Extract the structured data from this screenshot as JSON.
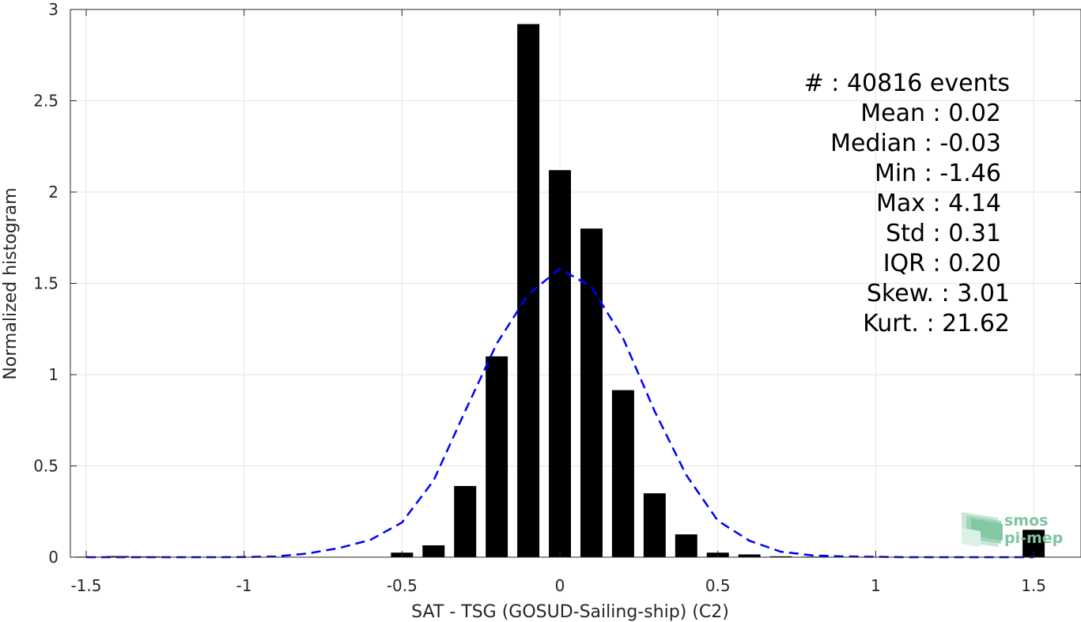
{
  "chart_data": {
    "type": "bar",
    "xlabel": "SAT - TSG (GOSUD-Sailing-ship) (C2)",
    "ylabel": "Normalized histogram",
    "xlim": [
      -1.55,
      1.65
    ],
    "ylim": [
      0,
      3
    ],
    "xticks": [
      -1.5,
      -1,
      -0.5,
      0,
      0.5,
      1,
      1.5
    ],
    "xtick_labels": [
      "-1.5",
      "-1",
      "-0.5",
      "0",
      "0.5",
      "1",
      "1.5"
    ],
    "yticks": [
      0,
      0.5,
      1,
      1.5,
      2,
      2.5,
      3
    ],
    "ytick_labels": [
      "0",
      "0.5",
      "1",
      "1.5",
      "2",
      "2.5",
      "3"
    ],
    "grid": true,
    "bar_width": 0.07,
    "bars": [
      {
        "x": -1.5,
        "y": 0.003
      },
      {
        "x": -1.4,
        "y": 0.006
      },
      {
        "x": -1.3,
        "y": 0.004
      },
      {
        "x": -0.5,
        "y": 0.025
      },
      {
        "x": -0.4,
        "y": 0.065
      },
      {
        "x": -0.3,
        "y": 0.39
      },
      {
        "x": -0.2,
        "y": 1.1
      },
      {
        "x": -0.1,
        "y": 2.92
      },
      {
        "x": 0.0,
        "y": 2.12
      },
      {
        "x": 0.1,
        "y": 1.8
      },
      {
        "x": 0.2,
        "y": 0.915
      },
      {
        "x": 0.3,
        "y": 0.35
      },
      {
        "x": 0.4,
        "y": 0.125
      },
      {
        "x": 0.5,
        "y": 0.025
      },
      {
        "x": 0.6,
        "y": 0.015
      },
      {
        "x": 0.7,
        "y": 0.005
      },
      {
        "x": 0.8,
        "y": 0.003
      },
      {
        "x": 1.5,
        "y": 0.15
      }
    ],
    "series": [
      {
        "type": "line",
        "style": "dashed",
        "color": "#0000ff",
        "x": [
          -1.5,
          -1.4,
          -1.3,
          -1.2,
          -1.1,
          -1.0,
          -0.9,
          -0.8,
          -0.7,
          -0.6,
          -0.5,
          -0.4,
          -0.3,
          -0.2,
          -0.1,
          0.0,
          0.1,
          0.2,
          0.3,
          0.4,
          0.5,
          0.6,
          0.7,
          0.8,
          0.9,
          1.0,
          1.1,
          1.2,
          1.3,
          1.4,
          1.5
        ],
        "y": [
          0,
          0,
          0,
          0,
          0,
          0.001,
          0.004,
          0.02,
          0.05,
          0.095,
          0.19,
          0.42,
          0.8,
          1.17,
          1.44,
          1.58,
          1.48,
          1.2,
          0.8,
          0.45,
          0.2,
          0.09,
          0.03,
          0.01,
          0.004,
          0.002,
          0,
          0,
          0,
          0,
          0
        ]
      }
    ],
    "annotation_lines": [
      "#  : 40816 events",
      "Mean : 0.02",
      "Median : -0.03",
      "Min : -1.46",
      "Max : 4.14",
      "Std : 0.31",
      "IQR : 0.20",
      "Skew. : 3.01",
      "Kurt. : 21.62"
    ],
    "bar_color": "#000000",
    "grid_color": "#e6e6e6",
    "axis_color": "#262626"
  },
  "logo": {
    "line1": "smos",
    "line2": "pi-mep"
  }
}
